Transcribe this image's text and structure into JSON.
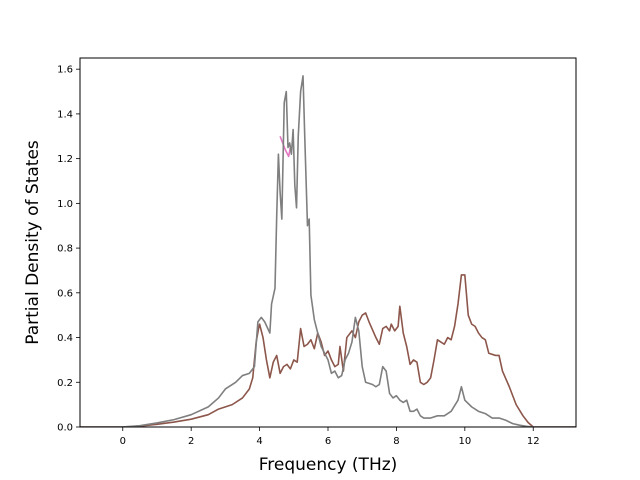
{
  "chart_data": {
    "type": "line",
    "title": "",
    "xlabel": "Frequency (THz)",
    "ylabel": "Partial Density of States",
    "xlim": [
      -1.25,
      13.25
    ],
    "ylim": [
      0.0,
      1.65
    ],
    "x_ticks": [
      0,
      2,
      4,
      6,
      8,
      10,
      12
    ],
    "x_tick_labels": [
      "0",
      "2",
      "4",
      "6",
      "8",
      "10",
      "12"
    ],
    "y_ticks": [
      0.0,
      0.2,
      0.4,
      0.6,
      0.8,
      1.0,
      1.2,
      1.4,
      1.6
    ],
    "y_tick_labels": [
      "0.0",
      "0.2",
      "0.4",
      "0.6",
      "0.8",
      "1.0",
      "1.2",
      "1.4",
      "1.6"
    ],
    "grid": false,
    "legend": "none",
    "series": [
      {
        "color": "#e377c2",
        "points": [
          [
            4.6,
            1.3
          ],
          [
            4.75,
            1.24
          ],
          [
            4.85,
            1.21
          ],
          [
            4.9,
            1.25
          ]
        ]
      },
      {
        "color": "#8c564b",
        "points": [
          [
            -1.25,
            0
          ],
          [
            0,
            0
          ],
          [
            0.5,
            0.004
          ],
          [
            1,
            0.012
          ],
          [
            1.5,
            0.022
          ],
          [
            2,
            0.035
          ],
          [
            2.5,
            0.055
          ],
          [
            2.8,
            0.08
          ],
          [
            3.2,
            0.1
          ],
          [
            3.5,
            0.13
          ],
          [
            3.7,
            0.17
          ],
          [
            3.8,
            0.22
          ],
          [
            3.9,
            0.38
          ],
          [
            3.97,
            0.44
          ],
          [
            4.0,
            0.46
          ],
          [
            4.1,
            0.4
          ],
          [
            4.2,
            0.3
          ],
          [
            4.3,
            0.22
          ],
          [
            4.4,
            0.29
          ],
          [
            4.5,
            0.32
          ],
          [
            4.6,
            0.24
          ],
          [
            4.7,
            0.27
          ],
          [
            4.8,
            0.28
          ],
          [
            4.9,
            0.26
          ],
          [
            5.0,
            0.3
          ],
          [
            5.1,
            0.29
          ],
          [
            5.2,
            0.44
          ],
          [
            5.3,
            0.36
          ],
          [
            5.4,
            0.37
          ],
          [
            5.5,
            0.39
          ],
          [
            5.6,
            0.35
          ],
          [
            5.7,
            0.42
          ],
          [
            5.8,
            0.38
          ],
          [
            5.9,
            0.32
          ],
          [
            6.0,
            0.34
          ],
          [
            6.1,
            0.3
          ],
          [
            6.2,
            0.27
          ],
          [
            6.3,
            0.28
          ],
          [
            6.35,
            0.36
          ],
          [
            6.45,
            0.25
          ],
          [
            6.55,
            0.4
          ],
          [
            6.7,
            0.43
          ],
          [
            6.8,
            0.4
          ],
          [
            6.9,
            0.47
          ],
          [
            7.0,
            0.5
          ],
          [
            7.1,
            0.51
          ],
          [
            7.2,
            0.47
          ],
          [
            7.4,
            0.4
          ],
          [
            7.5,
            0.37
          ],
          [
            7.6,
            0.44
          ],
          [
            7.7,
            0.45
          ],
          [
            7.8,
            0.43
          ],
          [
            7.85,
            0.46
          ],
          [
            7.95,
            0.43
          ],
          [
            8.05,
            0.45
          ],
          [
            8.1,
            0.54
          ],
          [
            8.2,
            0.42
          ],
          [
            8.3,
            0.36
          ],
          [
            8.4,
            0.28
          ],
          [
            8.5,
            0.3
          ],
          [
            8.6,
            0.29
          ],
          [
            8.7,
            0.2
          ],
          [
            8.8,
            0.19
          ],
          [
            8.9,
            0.2
          ],
          [
            9.0,
            0.22
          ],
          [
            9.1,
            0.3
          ],
          [
            9.2,
            0.39
          ],
          [
            9.3,
            0.38
          ],
          [
            9.4,
            0.37
          ],
          [
            9.5,
            0.4
          ],
          [
            9.6,
            0.39
          ],
          [
            9.7,
            0.45
          ],
          [
            9.8,
            0.55
          ],
          [
            9.9,
            0.68
          ],
          [
            10.0,
            0.68
          ],
          [
            10.1,
            0.5
          ],
          [
            10.2,
            0.46
          ],
          [
            10.3,
            0.45
          ],
          [
            10.4,
            0.42
          ],
          [
            10.5,
            0.4
          ],
          [
            10.6,
            0.39
          ],
          [
            10.7,
            0.33
          ],
          [
            10.9,
            0.32
          ],
          [
            11.0,
            0.32
          ],
          [
            11.1,
            0.25
          ],
          [
            11.3,
            0.18
          ],
          [
            11.5,
            0.1
          ],
          [
            11.7,
            0.05
          ],
          [
            11.85,
            0.02
          ],
          [
            12.0,
            0
          ],
          [
            13.25,
            0
          ]
        ]
      },
      {
        "color": "#7f7f7f",
        "points": [
          [
            -1.25,
            0
          ],
          [
            0,
            0
          ],
          [
            0.5,
            0.006
          ],
          [
            1,
            0.018
          ],
          [
            1.5,
            0.033
          ],
          [
            2,
            0.055
          ],
          [
            2.5,
            0.09
          ],
          [
            2.8,
            0.13
          ],
          [
            3.0,
            0.17
          ],
          [
            3.3,
            0.2
          ],
          [
            3.5,
            0.23
          ],
          [
            3.7,
            0.24
          ],
          [
            3.85,
            0.27
          ],
          [
            3.95,
            0.47
          ],
          [
            4.05,
            0.49
          ],
          [
            4.15,
            0.47
          ],
          [
            4.3,
            0.42
          ],
          [
            4.35,
            0.55
          ],
          [
            4.45,
            0.62
          ],
          [
            4.5,
            0.94
          ],
          [
            4.55,
            1.22
          ],
          [
            4.6,
            1.05
          ],
          [
            4.65,
            0.93
          ],
          [
            4.72,
            1.45
          ],
          [
            4.78,
            1.5
          ],
          [
            4.83,
            1.25
          ],
          [
            4.88,
            1.27
          ],
          [
            4.93,
            1.22
          ],
          [
            4.98,
            1.33
          ],
          [
            5.03,
            1.08
          ],
          [
            5.08,
            0.98
          ],
          [
            5.13,
            1.3
          ],
          [
            5.2,
            1.5
          ],
          [
            5.27,
            1.57
          ],
          [
            5.32,
            1.3
          ],
          [
            5.4,
            0.9
          ],
          [
            5.45,
            0.93
          ],
          [
            5.5,
            0.59
          ],
          [
            5.6,
            0.48
          ],
          [
            5.7,
            0.42
          ],
          [
            5.8,
            0.36
          ],
          [
            5.9,
            0.33
          ],
          [
            6.0,
            0.3
          ],
          [
            6.1,
            0.24
          ],
          [
            6.2,
            0.25
          ],
          [
            6.3,
            0.22
          ],
          [
            6.4,
            0.23
          ],
          [
            6.5,
            0.3
          ],
          [
            6.6,
            0.33
          ],
          [
            6.7,
            0.38
          ],
          [
            6.8,
            0.49
          ],
          [
            6.9,
            0.43
          ],
          [
            7.0,
            0.27
          ],
          [
            7.1,
            0.2
          ],
          [
            7.3,
            0.19
          ],
          [
            7.4,
            0.18
          ],
          [
            7.5,
            0.19
          ],
          [
            7.6,
            0.27
          ],
          [
            7.7,
            0.25
          ],
          [
            7.8,
            0.15
          ],
          [
            7.9,
            0.13
          ],
          [
            8.0,
            0.14
          ],
          [
            8.1,
            0.12
          ],
          [
            8.2,
            0.11
          ],
          [
            8.3,
            0.12
          ],
          [
            8.4,
            0.07
          ],
          [
            8.5,
            0.07
          ],
          [
            8.6,
            0.08
          ],
          [
            8.7,
            0.05
          ],
          [
            8.8,
            0.04
          ],
          [
            9.0,
            0.04
          ],
          [
            9.2,
            0.05
          ],
          [
            9.4,
            0.05
          ],
          [
            9.6,
            0.07
          ],
          [
            9.8,
            0.12
          ],
          [
            9.9,
            0.18
          ],
          [
            10.0,
            0.12
          ],
          [
            10.2,
            0.09
          ],
          [
            10.4,
            0.07
          ],
          [
            10.6,
            0.06
          ],
          [
            10.8,
            0.04
          ],
          [
            11.0,
            0.04
          ],
          [
            11.2,
            0.03
          ],
          [
            11.4,
            0.015
          ],
          [
            11.6,
            0.008
          ],
          [
            11.8,
            0.003
          ],
          [
            12.0,
            0
          ],
          [
            13.25,
            0
          ]
        ]
      }
    ]
  }
}
